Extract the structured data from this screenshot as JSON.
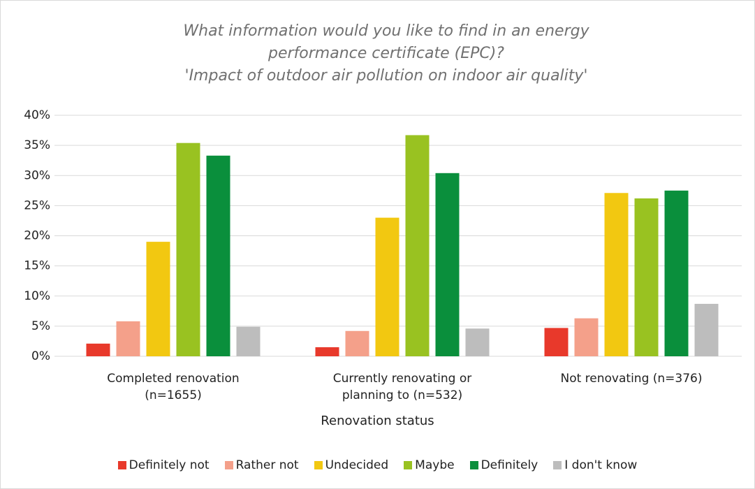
{
  "chart_data": {
    "type": "bar",
    "title": [
      "What information would you like to find in an energy",
      "performance certificate (EPC)?",
      "'Impact of outdoor air pollution on indoor air quality'"
    ],
    "x_label": "Renovation status",
    "categories": [
      "Completed renovation (n=1655)",
      "Currently renovating or planning to (n=532)",
      "Not renovating (n=376)"
    ],
    "series": [
      {
        "name": "Definitely not",
        "color": "#e8392b",
        "values": [
          2.1,
          1.5,
          4.7
        ]
      },
      {
        "name": "Rather not",
        "color": "#f4a08a",
        "values": [
          5.8,
          4.2,
          6.3
        ]
      },
      {
        "name": "Undecided",
        "color": "#f2c811",
        "values": [
          19.0,
          23.0,
          27.1
        ]
      },
      {
        "name": "Maybe",
        "color": "#99c221",
        "values": [
          35.4,
          36.7,
          26.2
        ]
      },
      {
        "name": "Definitely",
        "color": "#0a8f3c",
        "values": [
          33.3,
          30.4,
          27.5
        ]
      },
      {
        "name": "I don't know",
        "color": "#bdbdbd",
        "values": [
          4.9,
          4.6,
          8.7
        ]
      }
    ],
    "ylim": [
      0,
      40
    ],
    "yticks": [
      {
        "value": 0,
        "label": "0%"
      },
      {
        "value": 5,
        "label": "5%"
      },
      {
        "value": 10,
        "label": "10%"
      },
      {
        "value": 15,
        "label": "15%"
      },
      {
        "value": 20,
        "label": "20%"
      },
      {
        "value": 25,
        "label": "25%"
      },
      {
        "value": 30,
        "label": "30%"
      },
      {
        "value": 35,
        "label": "35%"
      },
      {
        "value": 40,
        "label": "40%"
      }
    ],
    "grid": true,
    "legend": "bottom"
  }
}
